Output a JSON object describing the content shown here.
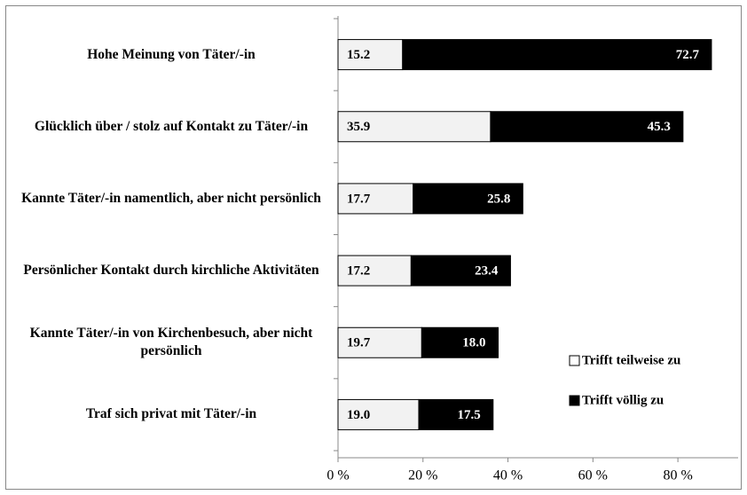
{
  "chart_data": {
    "type": "hbar_stacked",
    "categories": [
      "Hohe Meinung von  Täter/-in",
      "Glücklich über / stolz auf Kontakt zu Täter/-in",
      "Kannte Täter/-in namentlich, aber nicht persönlich",
      "Persönlicher Kontakt durch kirchliche Aktivitäten",
      "Kannte Täter/-in von Kirchenbesuch, aber nicht persönlich",
      "Traf sich privat mit Täter/-in"
    ],
    "series": [
      {
        "name": "Trifft teilweise zu",
        "color": "#f2f2f2",
        "values": [
          15.2,
          35.9,
          17.7,
          17.2,
          19.7,
          19.0
        ],
        "value_labels": [
          "15.2",
          "35.9",
          "17.7",
          "17.2",
          "19.7",
          "19.0"
        ]
      },
      {
        "name": "Trifft völlig zu",
        "color": "#000000",
        "values": [
          72.7,
          45.3,
          25.8,
          23.4,
          18.0,
          17.5
        ],
        "value_labels": [
          "72.7",
          "45.3",
          "25.8",
          "23.4",
          "18.0",
          "17.5"
        ]
      }
    ],
    "xlim": [
      0,
      90
    ],
    "xticks": [
      {
        "value": 0,
        "label": "0 %"
      },
      {
        "value": 20,
        "label": "20 %"
      },
      {
        "value": 40,
        "label": "40 %"
      },
      {
        "value": 60,
        "label": "60 %"
      },
      {
        "value": 80,
        "label": "80 %"
      }
    ],
    "legend": "lower right"
  }
}
